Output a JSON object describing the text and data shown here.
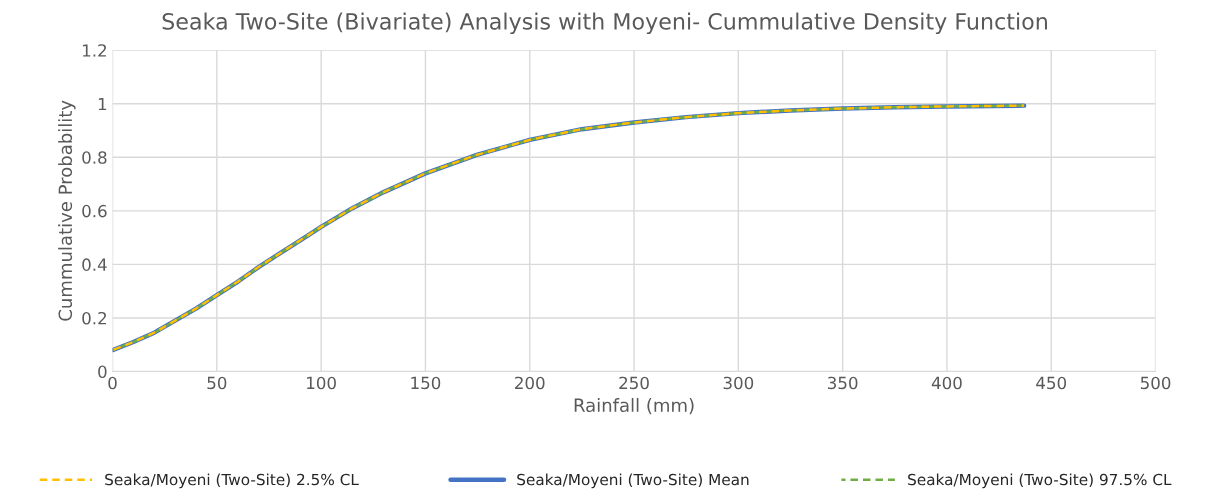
{
  "chart_data": {
    "type": "line",
    "title": "Seaka Two-Site (Bivariate) Analysis with Moyeni- Cummulative Density Function",
    "xlabel": "Rainfall (mm)",
    "ylabel": "Cummulative Probability",
    "x": [
      0,
      10,
      20,
      30,
      40,
      50,
      60,
      70,
      80,
      90,
      100,
      115,
      130,
      150,
      175,
      200,
      225,
      250,
      275,
      300,
      325,
      350,
      375,
      400,
      437
    ],
    "series": [
      {
        "name": "Seaka/Moyeni (Two-Site) 2.5% CL",
        "color": "#ffc000",
        "line_style": "dashed",
        "values": [
          0.08,
          0.11,
          0.145,
          0.19,
          0.235,
          0.285,
          0.335,
          0.39,
          0.44,
          0.49,
          0.54,
          0.61,
          0.67,
          0.74,
          0.81,
          0.865,
          0.905,
          0.93,
          0.95,
          0.965,
          0.975,
          0.982,
          0.987,
          0.99,
          0.993
        ]
      },
      {
        "name": "Seaka/Moyeni (Two-Site) Mean",
        "color": "#4472c4",
        "line_style": "solid",
        "values": [
          0.08,
          0.11,
          0.145,
          0.19,
          0.235,
          0.285,
          0.335,
          0.39,
          0.44,
          0.49,
          0.54,
          0.61,
          0.67,
          0.74,
          0.81,
          0.865,
          0.905,
          0.93,
          0.95,
          0.965,
          0.975,
          0.982,
          0.987,
          0.99,
          0.993
        ]
      },
      {
        "name": "Seaka/Moyeni (Two-Site) 97.5% CL",
        "color": "#70ad47",
        "line_style": "dashed",
        "values": [
          0.08,
          0.11,
          0.145,
          0.19,
          0.235,
          0.285,
          0.335,
          0.39,
          0.44,
          0.49,
          0.54,
          0.61,
          0.67,
          0.74,
          0.81,
          0.865,
          0.905,
          0.93,
          0.95,
          0.965,
          0.975,
          0.982,
          0.987,
          0.99,
          0.993
        ]
      }
    ],
    "xlim": [
      0,
      500
    ],
    "xticks": [
      0,
      50,
      100,
      150,
      200,
      250,
      300,
      350,
      400,
      450,
      500
    ],
    "ylim": [
      0,
      1.2
    ],
    "yticks": [
      0,
      0.2,
      0.4,
      0.6,
      0.8,
      1,
      1.2
    ],
    "grid": true,
    "legend": "bottom",
    "marker": "none"
  }
}
